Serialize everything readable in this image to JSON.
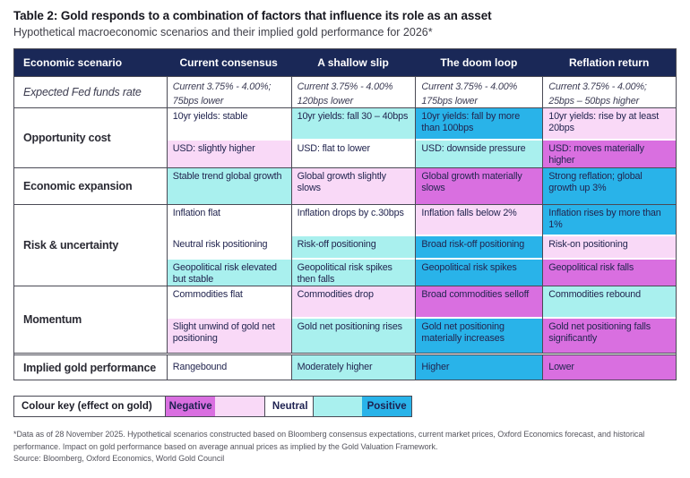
{
  "page": {
    "title": "Table 2: Gold responds to a combination of factors that influence its role as an asset",
    "subtitle": "Hypothetical macroeconomic scenarios and their implied gold performance for 2026*",
    "footnote": "*Data as of 28 November 2025. Hypothetical scenarios constructed based on Bloomberg consensus expectations, current market prices, Oxford Economics forecast, and historical performance. Impact on gold performance based on average annual prices as implied by the Gold Valuation Framework.",
    "source": "Source: Bloomberg, Oxford Economics, World Gold Council"
  },
  "colors": {
    "header_navy": "#1a2857",
    "negative": "#d96fe0",
    "mild_negative": "#f9d9f7",
    "neutral": "#ffffff",
    "mild_positive": "#a9f0ee",
    "positive": "#29b3e9"
  },
  "legend": {
    "label": "Colour key (effect on gold)",
    "items": [
      {
        "label": "Negative",
        "effect": "negative"
      },
      {
        "label": "",
        "effect": "mild_negative"
      },
      {
        "label": "Neutral",
        "effect": "neutral"
      },
      {
        "label": "",
        "effect": "mild_positive"
      },
      {
        "label": "Positive",
        "effect": "positive"
      }
    ]
  },
  "table": {
    "columns": [
      "Economic scenario",
      "Current consensus",
      "A shallow slip",
      "The doom loop",
      "Reflation return"
    ],
    "sections": [
      {
        "label": "Expected Fed funds rate",
        "rows": [
          {
            "cells": [
              {
                "text": "Current 3.75% - 4.00%; 75bps lower",
                "effect": "neutral"
              },
              {
                "text": "Current 3.75% - 4.00% 120bps lower",
                "effect": "neutral"
              },
              {
                "text": "Current 3.75% - 4.00% 175bps lower",
                "effect": "neutral"
              },
              {
                "text": "Current 3.75% - 4.00%; 25bps – 50bps higher",
                "effect": "neutral"
              }
            ]
          }
        ]
      },
      {
        "label": "Opportunity cost",
        "rows": [
          {
            "cells": [
              {
                "text": "10yr yields: stable",
                "effect": "neutral"
              },
              {
                "text": "10yr yields: fall 30 – 40bps",
                "effect": "mild_positive"
              },
              {
                "text": "10yr yields: fall by more than 100bps",
                "effect": "positive"
              },
              {
                "text": "10yr yields: rise by at least 20bps",
                "effect": "mild_negative"
              }
            ]
          },
          {
            "cells": [
              {
                "text": "USD: slightly higher",
                "effect": "mild_negative"
              },
              {
                "text": "USD: flat to lower",
                "effect": "neutral"
              },
              {
                "text": "USD: downside pressure",
                "effect": "mild_positive"
              },
              {
                "text": "USD: moves materially higher",
                "effect": "negative"
              }
            ]
          }
        ]
      },
      {
        "label": "Economic expansion",
        "rows": [
          {
            "cells": [
              {
                "text": "Stable trend global growth",
                "effect": "mild_positive"
              },
              {
                "text": "Global growth slightly slows",
                "effect": "mild_negative"
              },
              {
                "text": "Global growth materially slows",
                "effect": "negative"
              },
              {
                "text": "Strong reflation; global growth up 3%",
                "effect": "positive"
              }
            ]
          }
        ]
      },
      {
        "label": "Risk & uncertainty",
        "rows": [
          {
            "cells": [
              {
                "text": "Inflation flat",
                "effect": "neutral"
              },
              {
                "text": "Inflation drops by c.30bps",
                "effect": "neutral"
              },
              {
                "text": "Inflation falls below 2%",
                "effect": "mild_negative"
              },
              {
                "text": "Inflation rises by more than 1%",
                "effect": "positive"
              }
            ]
          },
          {
            "cells": [
              {
                "text": "Neutral risk positioning",
                "effect": "neutral"
              },
              {
                "text": "Risk-off positioning",
                "effect": "mild_positive"
              },
              {
                "text": "Broad risk-off positioning",
                "effect": "positive"
              },
              {
                "text": "Risk-on positioning",
                "effect": "mild_negative"
              }
            ]
          },
          {
            "cells": [
              {
                "text": "Geopolitical risk elevated but stable",
                "effect": "mild_positive"
              },
              {
                "text": "Geopolitical risk spikes then falls",
                "effect": "mild_positive"
              },
              {
                "text": "Geopolitical risk spikes",
                "effect": "positive"
              },
              {
                "text": "Geopolitical risk falls",
                "effect": "negative"
              }
            ]
          }
        ]
      },
      {
        "label": "Momentum",
        "rows": [
          {
            "cells": [
              {
                "text": "Commodities flat",
                "effect": "neutral"
              },
              {
                "text": "Commodities drop",
                "effect": "mild_negative"
              },
              {
                "text": "Broad commodities selloff",
                "effect": "negative"
              },
              {
                "text": "Commodities rebound",
                "effect": "mild_positive"
              }
            ]
          },
          {
            "cells": [
              {
                "text": "Slight unwind of gold net positioning",
                "effect": "mild_negative"
              },
              {
                "text": "Gold net positioning rises",
                "effect": "mild_positive"
              },
              {
                "text": "Gold net positioning materially increases",
                "effect": "positive"
              },
              {
                "text": "Gold net positioning falls significantly",
                "effect": "negative"
              }
            ]
          }
        ]
      },
      {
        "label": "Implied gold performance",
        "rows": [
          {
            "cells": [
              {
                "text": "Rangebound",
                "effect": "neutral"
              },
              {
                "text": "Moderately higher",
                "effect": "mild_positive"
              },
              {
                "text": "Higher",
                "effect": "positive"
              },
              {
                "text": "Lower",
                "effect": "negative"
              }
            ]
          }
        ]
      }
    ]
  }
}
